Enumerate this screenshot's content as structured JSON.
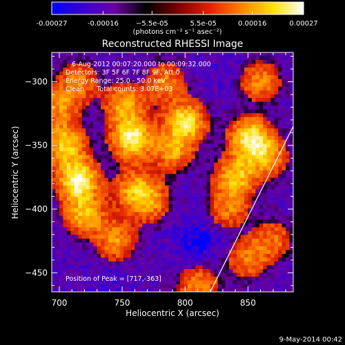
{
  "chart_data": {
    "type": "heatmap",
    "title": "Reconstructed RHESSI Image",
    "xlabel": "Heliocentric X (arcsec)",
    "ylabel": "Heliocentric Y (arcsec)",
    "xlim": [
      694,
      886
    ],
    "ylim": [
      -465,
      -277
    ],
    "x_ticks": [
      700,
      750,
      800,
      850
    ],
    "y_ticks": [
      -300,
      -350,
      -400,
      -450
    ],
    "x_tick_labels": [
      "700",
      "750",
      "800",
      "850"
    ],
    "y_tick_labels": [
      "−300",
      "−350",
      "−400",
      "−450"
    ],
    "colorbar": {
      "range": [
        -0.00027,
        0.00027
      ],
      "ticks": [
        -0.00027,
        -0.00016,
        -5.5e-05,
        5.5e-05,
        0.00016,
        0.00027
      ],
      "tick_labels": [
        "-0.00027",
        "-0.00016",
        "−5.5e-05",
        "5.5e-05",
        "0.00016",
        "0.00027"
      ],
      "units_label": "(photons cm⁻² s⁻¹ asec⁻²)",
      "colors": [
        "#0000ff",
        "#3a00d0",
        "#6a00a0",
        "#000000",
        "#7a0000",
        "#e02000",
        "#ff8000",
        "#ffe000",
        "#ffffff"
      ]
    },
    "annotations": {
      "time_range": "6-Aug-2012 00:07:20.000 to 00:09:32.000",
      "detectors": "Detectors: 3F 5F 6F 7F 8F 9F, Att 0",
      "energy_range": "Energy Range: 25.0 - 50.0 keV",
      "method": "Clean",
      "total_counts": "Total counts: 3.07E+03",
      "peak": "Position of Peak = [717,-363]"
    },
    "limb_line": {
      "x": [
        820,
        886
      ],
      "y": [
        -465,
        -335
      ]
    },
    "hot_spots": [
      {
        "x": 715,
        "y": -378,
        "intensity": 1.0
      },
      {
        "x": 705,
        "y": -350,
        "intensity": 0.75
      },
      {
        "x": 758,
        "y": -345,
        "intensity": 0.95
      },
      {
        "x": 752,
        "y": -318,
        "intensity": 0.6
      },
      {
        "x": 800,
        "y": -332,
        "intensity": 0.85
      },
      {
        "x": 790,
        "y": -355,
        "intensity": 0.55
      },
      {
        "x": 785,
        "y": -300,
        "intensity": 0.45
      },
      {
        "x": 852,
        "y": -345,
        "intensity": 0.9
      },
      {
        "x": 865,
        "y": -360,
        "intensity": 0.55
      },
      {
        "x": 840,
        "y": -375,
        "intensity": 0.7
      },
      {
        "x": 720,
        "y": -405,
        "intensity": 0.65
      },
      {
        "x": 745,
        "y": -425,
        "intensity": 0.55
      },
      {
        "x": 772,
        "y": -395,
        "intensity": 0.5
      },
      {
        "x": 760,
        "y": -385,
        "intensity": 0.55
      },
      {
        "x": 715,
        "y": -300,
        "intensity": 0.45
      },
      {
        "x": 860,
        "y": -300,
        "intensity": 0.5
      },
      {
        "x": 850,
        "y": -440,
        "intensity": 0.45
      },
      {
        "x": 870,
        "y": -425,
        "intensity": 0.4
      },
      {
        "x": 810,
        "y": -462,
        "intensity": 0.5
      },
      {
        "x": 700,
        "y": -320,
        "intensity": 0.5
      },
      {
        "x": 835,
        "y": -400,
        "intensity": 0.45
      }
    ],
    "cold_spots": [
      {
        "x": 810,
        "y": -425,
        "intensity": 0.8
      },
      {
        "x": 740,
        "y": -455,
        "intensity": 0.35
      },
      {
        "x": 830,
        "y": -300,
        "intensity": 0.3
      }
    ]
  },
  "footer": {
    "date": "9-May-2014 00:42"
  }
}
